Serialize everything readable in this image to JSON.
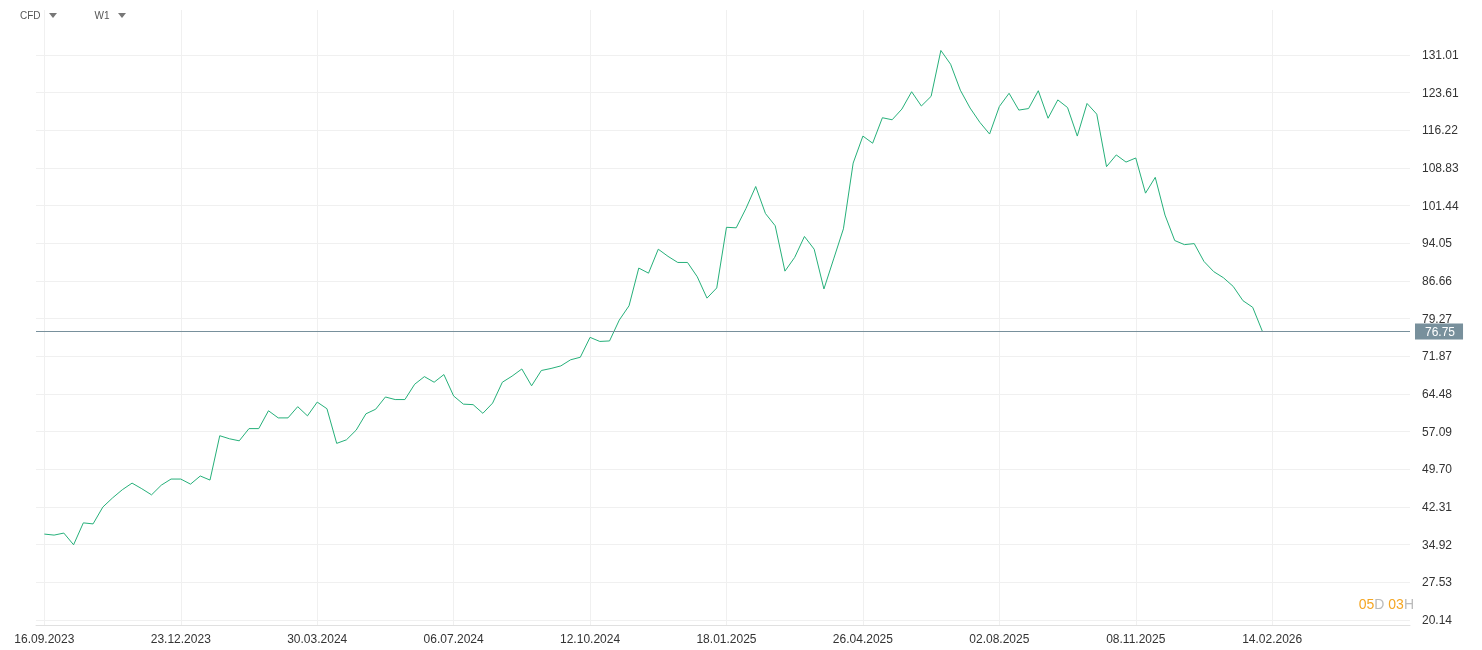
{
  "chart_data": {
    "type": "line",
    "title": "CFD",
    "subtitle": "W1",
    "annotations": [
      "05D 03H"
    ],
    "x": [
      "2023-09-16",
      "2023-09-23",
      "2023-09-30",
      "2023-10-07",
      "2023-10-14",
      "2023-10-21",
      "2023-10-28",
      "2023-11-04",
      "2023-11-11",
      "2023-11-18",
      "2023-11-25",
      "2023-12-02",
      "2023-12-09",
      "2023-12-16",
      "2023-12-23",
      "2023-12-30",
      "2024-01-06",
      "2024-01-13",
      "2024-01-20",
      "2024-01-27",
      "2024-02-03",
      "2024-02-10",
      "2024-02-17",
      "2024-02-24",
      "2024-03-02",
      "2024-03-09",
      "2024-03-16",
      "2024-03-23",
      "2024-03-30",
      "2024-04-06",
      "2024-04-13",
      "2024-04-20",
      "2024-04-27",
      "2024-05-04",
      "2024-05-11",
      "2024-05-18",
      "2024-05-25",
      "2024-06-01",
      "2024-06-08",
      "2024-06-15",
      "2024-06-22",
      "2024-06-29",
      "2024-07-06",
      "2024-07-13",
      "2024-07-20",
      "2024-07-27",
      "2024-08-03",
      "2024-08-10",
      "2024-08-17",
      "2024-08-24",
      "2024-08-31",
      "2024-09-07",
      "2024-09-14",
      "2024-09-21",
      "2024-09-28",
      "2024-10-05",
      "2024-10-12",
      "2024-10-19",
      "2024-10-26",
      "2024-11-02",
      "2024-11-09",
      "2024-11-16",
      "2024-11-23",
      "2024-11-30",
      "2024-12-07",
      "2024-12-14",
      "2024-12-21",
      "2024-12-28",
      "2025-01-04",
      "2025-01-11",
      "2025-01-18",
      "2025-01-25",
      "2025-02-01",
      "2025-02-08",
      "2025-02-15",
      "2025-02-22",
      "2025-03-01",
      "2025-03-08",
      "2025-03-15",
      "2025-03-22",
      "2025-03-29",
      "2025-04-05",
      "2025-04-12",
      "2025-04-19",
      "2025-04-26",
      "2025-05-03",
      "2025-05-10",
      "2025-05-17",
      "2025-05-24",
      "2025-05-31",
      "2025-06-07",
      "2025-06-14",
      "2025-06-21",
      "2025-06-28",
      "2025-07-05",
      "2025-07-12",
      "2025-07-19",
      "2025-07-26",
      "2025-08-02",
      "2025-08-09",
      "2025-08-16",
      "2025-08-23",
      "2025-08-30",
      "2025-09-06",
      "2025-09-13",
      "2025-09-20",
      "2025-09-27",
      "2025-10-04",
      "2025-10-11",
      "2025-10-18",
      "2025-10-25",
      "2025-11-01",
      "2025-11-08",
      "2025-11-15",
      "2025-11-22",
      "2025-11-29",
      "2025-12-06",
      "2025-12-13",
      "2025-12-20",
      "2025-12-27",
      "2026-01-03",
      "2026-01-10",
      "2026-01-17",
      "2026-01-24",
      "2026-01-31",
      "2026-02-07"
    ],
    "series": [
      {
        "color": "#26b07a",
        "values": [
          37.0,
          36.8,
          37.2,
          34.9,
          39.2,
          39.0,
          42.3,
          44.1,
          45.7,
          47.0,
          45.9,
          44.7,
          46.6,
          47.8,
          47.8,
          46.8,
          48.4,
          47.6,
          56.3,
          55.7,
          55.3,
          57.7,
          57.7,
          61.2,
          59.8,
          59.8,
          62.0,
          60.2,
          62.9,
          61.6,
          54.8,
          55.5,
          57.4,
          60.6,
          61.5,
          63.9,
          63.4,
          63.4,
          66.4,
          67.9,
          66.8,
          68.3,
          64.1,
          62.5,
          62.4,
          60.7,
          62.7,
          66.8,
          68.0,
          69.4,
          66.1,
          69.1,
          69.5,
          70.0,
          71.2,
          71.7,
          75.6,
          74.8,
          74.9,
          79.0,
          81.8,
          89.2,
          88.2,
          92.9,
          91.5,
          90.3,
          90.3,
          87.5,
          83.3,
          85.3,
          97.2,
          97.1,
          100.9,
          105.2,
          99.9,
          97.5,
          88.6,
          91.3,
          95.4,
          92.9,
          85.1,
          91.0,
          96.9,
          109.8,
          115.1,
          113.7,
          118.7,
          118.3,
          120.4,
          123.8,
          121.0,
          122.9,
          131.9,
          129.2,
          124.1,
          120.6,
          117.8,
          115.5,
          120.9,
          123.5,
          120.2,
          120.5,
          124.0,
          118.6,
          122.2,
          120.7,
          115.1,
          121.5,
          119.4,
          109.1,
          111.4,
          110.0,
          110.8,
          103.9,
          107.0,
          99.6,
          94.6,
          93.8,
          94.0,
          90.5,
          88.5,
          87.3,
          85.6,
          82.8,
          81.5,
          76.75
        ]
      }
    ],
    "xlim": [
      "2023-09-10",
      "2026-05-24"
    ],
    "xticks": [
      {
        "value": "2023-09-16",
        "label": "16.09.2023"
      },
      {
        "value": "2023-12-23",
        "label": "23.12.2023"
      },
      {
        "value": "2024-03-30",
        "label": "30.03.2024"
      },
      {
        "value": "2024-07-06",
        "label": "06.07.2024"
      },
      {
        "value": "2024-10-12",
        "label": "12.10.2024"
      },
      {
        "value": "2025-01-18",
        "label": "18.01.2025"
      },
      {
        "value": "2025-04-26",
        "label": "26.04.2025"
      },
      {
        "value": "2025-08-02",
        "label": "02.08.2025"
      },
      {
        "value": "2025-11-08",
        "label": "08.11.2025"
      },
      {
        "value": "2026-02-14",
        "label": "14.02.2026"
      }
    ],
    "ylim": [
      19.16,
      139.84
    ],
    "yticks": [
      20.14,
      27.53,
      34.92,
      42.31,
      {
        "value": 49.7,
        "label": "49.70"
      },
      57.09,
      64.48,
      71.87,
      79.27,
      86.66,
      94.05,
      101.44,
      108.83,
      116.22,
      123.61,
      131.01
    ],
    "ref_lines": [
      {
        "axis": "y",
        "value": 76.75,
        "label": "76.75",
        "color": "#78909c"
      }
    ],
    "grid": true,
    "marker": "none"
  }
}
